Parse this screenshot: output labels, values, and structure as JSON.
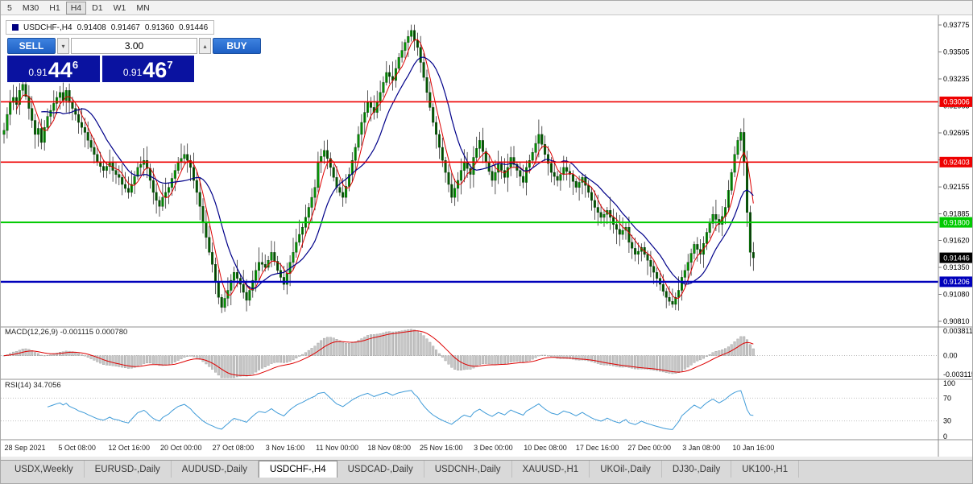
{
  "colors": {
    "bull": "#00cf00",
    "bear": "#007e00",
    "wick": "#111111",
    "ma_fast_red": "#dd0000",
    "ma_slow_blue": "#000089",
    "level_red": "#ee0000",
    "level_green": "#00ca00",
    "level_blue": "#0000bb",
    "badge_black": "#000000",
    "macd_hist": "#c6c6c6",
    "macd_hist_edge": "#9a9a9a",
    "macd_signal": "#dd0000",
    "rsi_line": "#3f9bd8",
    "quote_bg": "#0a12a0"
  },
  "toolbar": {
    "timeframes": [
      "5",
      "M30",
      "H1",
      "H4",
      "D1",
      "W1",
      "MN"
    ],
    "active": "H4"
  },
  "chart_header": {
    "symbol_label": "USDCHF-,H4",
    "open": "0.91408",
    "high": "0.91467",
    "low": "0.91360",
    "close": "0.91446"
  },
  "trade_panel": {
    "sell_label": "SELL",
    "buy_label": "BUY",
    "volume": "3.00",
    "icons": {
      "spinner_down": "▾",
      "spinner_up": "▴"
    },
    "sell_price": {
      "prefix": "0.91",
      "big": "44",
      "sup": "6"
    },
    "buy_price": {
      "prefix": "0.91",
      "big": "46",
      "sup": "7"
    }
  },
  "indicators": {
    "macd_label": "MACD(12,26,9) -0.001115 0.000780",
    "rsi_label": "RSI(14) 34.7056"
  },
  "bottom_tabs": {
    "tabs": [
      "USDX,Weekly",
      "EURUSD-,Daily",
      "AUDUSD-,Daily",
      "USDCHF-,H4",
      "USDCAD-,Daily",
      "USDCNH-,Daily",
      "XAUUSD-,H1",
      "UKOil-,Daily",
      "DJ30-,Daily",
      "UK100-,H1"
    ],
    "active": "USDCHF-,H4"
  },
  "chart_data": {
    "type": "candlestick",
    "symbol": "USDCHF-",
    "timeframe": "H4",
    "price_ticks": [
      "0.93775",
      "0.93505",
      "0.93235",
      "0.92965",
      "0.92695",
      "0.92425",
      "0.92155",
      "0.91885",
      "0.91620",
      "0.91350",
      "0.91080",
      "0.90810"
    ],
    "time_labels": [
      "28 Sep 2021",
      "5 Oct 08:00",
      "12 Oct 16:00",
      "20 Oct 00:00",
      "27 Oct 08:00",
      "3 Nov 16:00",
      "11 Nov 00:00",
      "18 Nov 08:00",
      "25 Nov 16:00",
      "3 Dec 00:00",
      "10 Dec 08:00",
      "17 Dec 16:00",
      "27 Dec 00:00",
      "3 Jan 08:00",
      "10 Jan 16:00"
    ],
    "levels": [
      {
        "price": 0.93006,
        "color_key": "level_red",
        "width": 1.6
      },
      {
        "price": 0.92403,
        "color_key": "level_red",
        "width": 1.6
      },
      {
        "price": 0.918,
        "color_key": "level_green",
        "width": 2
      },
      {
        "price": 0.91206,
        "color_key": "level_blue",
        "width": 2.4
      }
    ],
    "price_badges": [
      {
        "text": "0.93006",
        "price": 0.93006,
        "bg_key": "level_red"
      },
      {
        "text": "0.92403",
        "price": 0.92403,
        "bg_key": "level_red"
      },
      {
        "text": "0.91800",
        "price": 0.918,
        "bg_key": "level_green"
      },
      {
        "text": "0.91446",
        "price": 0.91446,
        "bg_key": "badge_black"
      },
      {
        "text": "0.91206",
        "price": 0.91206,
        "bg_key": "level_blue"
      }
    ],
    "open_first": 0.9268,
    "closes": [
      0.9272,
      0.9288,
      0.93,
      0.9305,
      0.9298,
      0.9312,
      0.9318,
      0.9306,
      0.9294,
      0.9282,
      0.9268,
      0.9274,
      0.926,
      0.9275,
      0.9286,
      0.9292,
      0.9299,
      0.9305,
      0.931,
      0.9302,
      0.9312,
      0.93,
      0.9294,
      0.9288,
      0.928,
      0.9275,
      0.927,
      0.9262,
      0.9255,
      0.9248,
      0.924,
      0.9236,
      0.9232,
      0.9236,
      0.924,
      0.9232,
      0.9228,
      0.9225,
      0.9218,
      0.9214,
      0.921,
      0.9218,
      0.9226,
      0.9235,
      0.9238,
      0.9242,
      0.9234,
      0.9222,
      0.921,
      0.9202,
      0.9196,
      0.9205,
      0.921,
      0.9215,
      0.9224,
      0.9232,
      0.924,
      0.9244,
      0.9248,
      0.9242,
      0.9235,
      0.9222,
      0.921,
      0.9196,
      0.918,
      0.9165,
      0.915,
      0.9138,
      0.912,
      0.9105,
      0.9095,
      0.9104,
      0.9112,
      0.9122,
      0.913,
      0.9124,
      0.9118,
      0.911,
      0.9102,
      0.9112,
      0.9122,
      0.9132,
      0.914,
      0.9138,
      0.9135,
      0.9142,
      0.915,
      0.9141,
      0.9132,
      0.9125,
      0.9118,
      0.9129,
      0.914,
      0.915,
      0.916,
      0.9168,
      0.9175,
      0.9185,
      0.9195,
      0.9205,
      0.9215,
      0.924,
      0.9246,
      0.9252,
      0.9244,
      0.9235,
      0.9225,
      0.9215,
      0.921,
      0.9205,
      0.9216,
      0.9228,
      0.9242,
      0.9255,
      0.9268,
      0.928,
      0.929,
      0.93,
      0.9295,
      0.929,
      0.93,
      0.931,
      0.932,
      0.933,
      0.9326,
      0.9322,
      0.9334,
      0.9345,
      0.9352,
      0.936,
      0.9366,
      0.9372,
      0.9362,
      0.9355,
      0.934,
      0.9325,
      0.931,
      0.9295,
      0.928,
      0.9268,
      0.9255,
      0.9242,
      0.923,
      0.9218,
      0.9205,
      0.9214,
      0.9222,
      0.9232,
      0.924,
      0.9234,
      0.9228,
      0.9245,
      0.9254,
      0.9262,
      0.9251,
      0.924,
      0.9231,
      0.9222,
      0.923,
      0.9238,
      0.9232,
      0.9225,
      0.9235,
      0.9245,
      0.9238,
      0.9232,
      0.9226,
      0.922,
      0.9235,
      0.9242,
      0.925,
      0.9259,
      0.9268,
      0.9258,
      0.9248,
      0.9239,
      0.923,
      0.9226,
      0.9222,
      0.9228,
      0.9235,
      0.9231,
      0.9228,
      0.9221,
      0.9215,
      0.922,
      0.9225,
      0.9217,
      0.921,
      0.9202,
      0.9195,
      0.919,
      0.9185,
      0.9188,
      0.9192,
      0.9185,
      0.9178,
      0.9173,
      0.9168,
      0.9172,
      0.9175,
      0.916,
      0.9154,
      0.9148,
      0.9151,
      0.9155,
      0.9148,
      0.9142,
      0.9136,
      0.913,
      0.9124,
      0.9118,
      0.9111,
      0.9105,
      0.9101,
      0.9098,
      0.9105,
      0.9112,
      0.9125,
      0.9132,
      0.914,
      0.9149,
      0.9158,
      0.9153,
      0.9148,
      0.9159,
      0.917,
      0.9179,
      0.9188,
      0.9183,
      0.9178,
      0.9186,
      0.9195,
      0.9212,
      0.923,
      0.9248,
      0.9262,
      0.927,
      0.924,
      0.919,
      0.915,
      0.91446
    ],
    "ma_fast_period": 5,
    "ma_slow_period": 13,
    "macd": {
      "params": [
        12,
        26,
        9
      ],
      "axis_ticks": [
        "0.003811",
        "0.00",
        "-0.003115"
      ],
      "range": [
        -0.003115,
        0.003811
      ]
    },
    "rsi": {
      "period": 14,
      "axis_ticks": [
        "100",
        "70",
        "30",
        "0"
      ],
      "dashed_levels": [
        70,
        30
      ],
      "range": [
        0,
        100
      ]
    }
  }
}
